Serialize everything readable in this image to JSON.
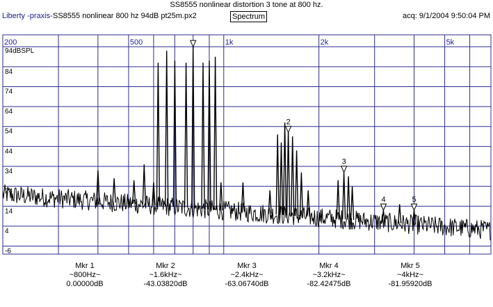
{
  "header": {
    "title": "SS8555 nonlinear distortion 3 tone at 800  hz.",
    "app_name": "Liberty -praxis-",
    "file_name": "SS8555 nonlinear 800 hz 94dB pt25m.px2",
    "view_button": "Spectrum",
    "acquired": "acq: 9/1/2004 9:50:04 PM"
  },
  "colors": {
    "grid": "#2b2b8f",
    "trace": "#000000",
    "freq_label": "#1f1f9a",
    "app_name": "#1b1b8a"
  },
  "chart_data": {
    "type": "line",
    "x_scale": "log",
    "xlim": [
      200,
      7000
    ],
    "ylim": [
      -10,
      100
    ],
    "y_unit_label": "94dBSPL",
    "x_tick_labels": [
      {
        "x": 200,
        "label": "200"
      },
      {
        "x": 500,
        "label": "500"
      },
      {
        "x": 1000,
        "label": "1k"
      },
      {
        "x": 2000,
        "label": "2k"
      },
      {
        "x": 5000,
        "label": "5k"
      }
    ],
    "y_tick_labels": [
      84,
      74,
      64,
      54,
      44,
      34,
      24,
      14,
      4,
      -6
    ],
    "grid": true,
    "peaks": [
      {
        "x": 400,
        "y": 32
      },
      {
        "x": 450,
        "y": 28
      },
      {
        "x": 520,
        "y": 27
      },
      {
        "x": 560,
        "y": 35
      },
      {
        "x": 600,
        "y": 26
      },
      {
        "x": 620,
        "y": 86
      },
      {
        "x": 660,
        "y": 92
      },
      {
        "x": 700,
        "y": 87
      },
      {
        "x": 760,
        "y": 86
      },
      {
        "x": 800,
        "y": 94
      },
      {
        "x": 860,
        "y": 86
      },
      {
        "x": 900,
        "y": 87
      },
      {
        "x": 940,
        "y": 89
      },
      {
        "x": 980,
        "y": 26
      },
      {
        "x": 1150,
        "y": 26
      },
      {
        "x": 1400,
        "y": 22
      },
      {
        "x": 1480,
        "y": 50
      },
      {
        "x": 1520,
        "y": 46
      },
      {
        "x": 1560,
        "y": 56
      },
      {
        "x": 1600,
        "y": 52
      },
      {
        "x": 1650,
        "y": 49
      },
      {
        "x": 1700,
        "y": 42
      },
      {
        "x": 1760,
        "y": 31
      },
      {
        "x": 1850,
        "y": 22
      },
      {
        "x": 2300,
        "y": 27
      },
      {
        "x": 2400,
        "y": 31
      },
      {
        "x": 2480,
        "y": 29
      },
      {
        "x": 2550,
        "y": 24
      },
      {
        "x": 3200,
        "y": 12
      },
      {
        "x": 3600,
        "y": 15
      },
      {
        "x": 4000,
        "y": 12
      }
    ],
    "markers": [
      {
        "label": "",
        "x": 800,
        "y": 94
      },
      {
        "label": "2",
        "x": 1600,
        "y": 51
      },
      {
        "label": "3",
        "x": 2400,
        "y": 31
      },
      {
        "label": "4",
        "x": 3200,
        "y": 12
      },
      {
        "label": "5",
        "x": 4000,
        "y": 12
      }
    ]
  },
  "markers_readout": [
    {
      "name": "Mkr 1",
      "freq": "~800Hz~",
      "level": "0.00000dB"
    },
    {
      "name": "Mkr 2",
      "freq": "~1.6kHz~",
      "level": "-43.03820dB"
    },
    {
      "name": "Mkr 3",
      "freq": "~2.4kHz~",
      "level": "-63.06740dB"
    },
    {
      "name": "Mkr 4",
      "freq": "~3.2kHz~",
      "level": "-82.42475dB"
    },
    {
      "name": "Mkr 5",
      "freq": "~4kHz~",
      "level": "-81.95920dB"
    }
  ]
}
